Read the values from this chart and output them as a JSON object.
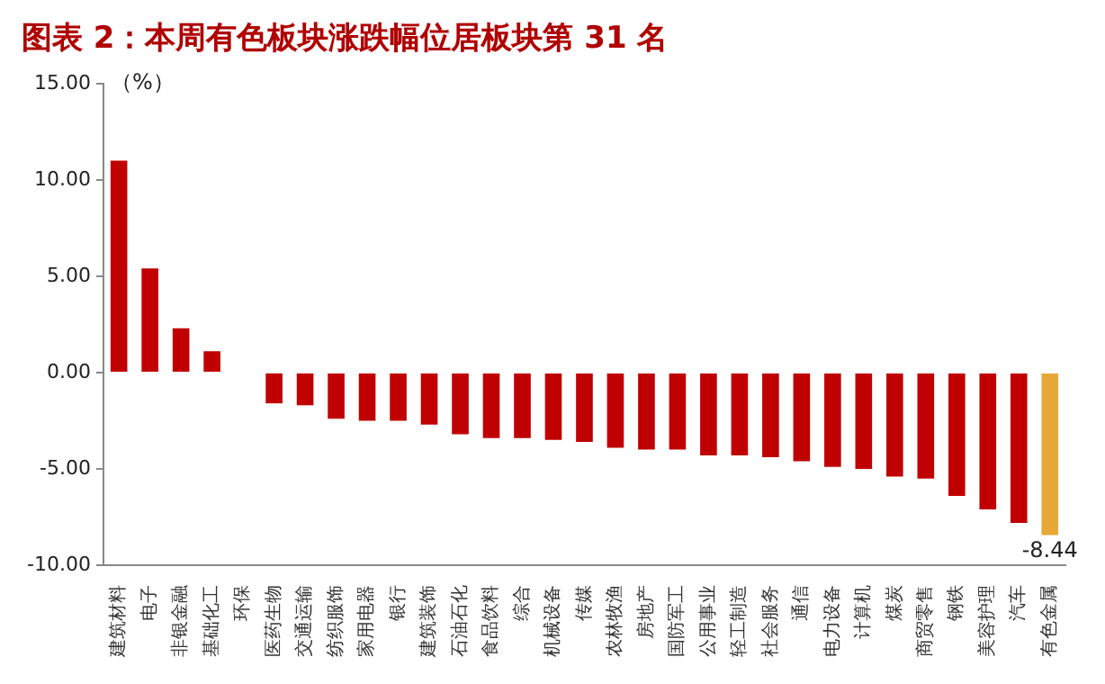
{
  "chart_data": {
    "type": "bar",
    "title": "图表 2：本周有色板块涨跌幅位居板块第 31 名",
    "ylabel": "（%）",
    "categories": [
      "建筑材料",
      "电子",
      "非银金融",
      "基础化工",
      "环保",
      "医药生物",
      "交通运输",
      "纺织服饰",
      "家用电器",
      "银行",
      "建筑装饰",
      "石油石化",
      "食品饮料",
      "综合",
      "机械设备",
      "传媒",
      "农林牧渔",
      "房地产",
      "国防军工",
      "公用事业",
      "轻工制造",
      "社会服务",
      "通信",
      "电力设备",
      "计算机",
      "煤炭",
      "商贸零售",
      "钢铁",
      "美容护理",
      "汽车",
      "有色金属"
    ],
    "values": [
      11.0,
      5.4,
      2.3,
      1.1,
      0,
      -1.6,
      -1.7,
      -2.4,
      -2.5,
      -2.5,
      -2.7,
      -3.2,
      -3.4,
      -3.4,
      -3.5,
      -3.6,
      -3.9,
      -4.0,
      -4.0,
      -4.3,
      -4.3,
      -4.4,
      -4.6,
      -4.9,
      -5.0,
      -5.4,
      -5.5,
      -6.4,
      -7.1,
      -7.8,
      -8.44
    ],
    "colors": [
      "#c00000",
      "#c00000",
      "#c00000",
      "#c00000",
      "#c00000",
      "#c00000",
      "#c00000",
      "#c00000",
      "#c00000",
      "#c00000",
      "#c00000",
      "#c00000",
      "#c00000",
      "#c00000",
      "#c00000",
      "#c00000",
      "#c00000",
      "#c00000",
      "#c00000",
      "#c00000",
      "#c00000",
      "#c00000",
      "#c00000",
      "#c00000",
      "#c00000",
      "#c00000",
      "#c00000",
      "#c00000",
      "#c00000",
      "#c00000",
      "#e8a838"
    ],
    "value_labels": [
      null,
      null,
      null,
      null,
      null,
      null,
      null,
      null,
      null,
      null,
      null,
      null,
      null,
      null,
      null,
      null,
      null,
      null,
      null,
      null,
      null,
      null,
      null,
      null,
      null,
      null,
      null,
      null,
      null,
      null,
      "-8.44"
    ],
    "ylim": [
      -10,
      15
    ],
    "yticks": [
      {
        "value": -10,
        "label": "-10.00"
      },
      {
        "value": -5,
        "label": "-5.00"
      },
      {
        "value": 0,
        "label": "0.00"
      },
      {
        "value": 5,
        "label": "5.00"
      },
      {
        "value": 10,
        "label": "10.00"
      },
      {
        "value": 15,
        "label": "15.00"
      }
    ],
    "grid": false,
    "legend": false
  }
}
